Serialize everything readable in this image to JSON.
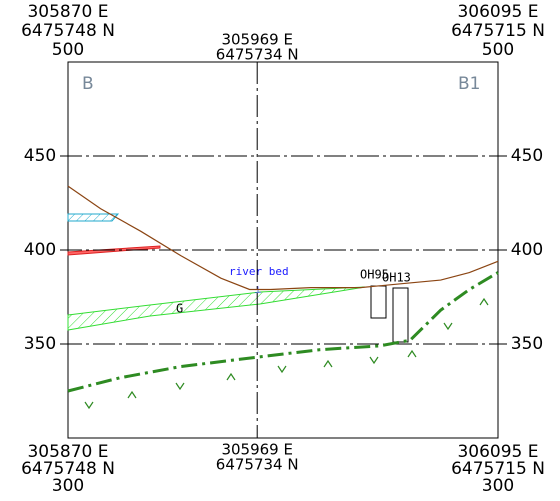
{
  "chart_data": {
    "type": "line",
    "xlim": [
      305870,
      306095
    ],
    "xticks": [
      {
        "value": 305870,
        "label": "305870 E"
      },
      {
        "value": 305969,
        "label": "305969 E"
      },
      {
        "value": 306095,
        "label": "306095 E"
      }
    ],
    "x_northings": [
      "6475748 N",
      "6475734 N",
      "6475715 N"
    ],
    "ylim": [
      300,
      500
    ],
    "yticks": [
      350,
      400,
      450
    ],
    "grid": true,
    "section_labels": [
      "B",
      "B1"
    ],
    "annotations": [
      "river bed",
      "G",
      "OH95",
      "OH13"
    ],
    "series": [
      {
        "color": "#8b4513",
        "style": "solid",
        "x": [
          305870,
          305887,
          305908,
          305929,
          305950,
          305965,
          305976,
          305997,
          306023,
          306044,
          306065,
          306080,
          306095
        ],
        "values": [
          434,
          422,
          410,
          397,
          385,
          379,
          379,
          380,
          380,
          382,
          384,
          388,
          394
        ]
      },
      {
        "color": "#2e8b22",
        "style": "dashdot",
        "x": [
          305870,
          305897,
          305929,
          305969,
          306002,
          306033,
          306049,
          306065,
          306080,
          306095
        ],
        "values": [
          325,
          332,
          338,
          343,
          347,
          349,
          352,
          368,
          379,
          388
        ]
      }
    ]
  }
}
